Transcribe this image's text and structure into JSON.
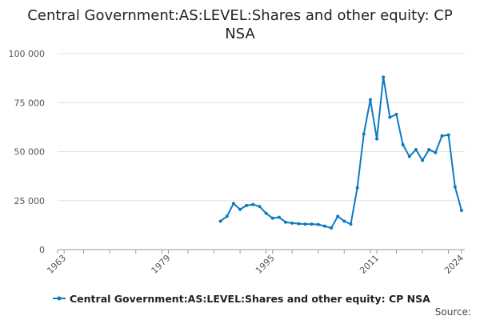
{
  "chart_data": {
    "type": "line",
    "title_lines": [
      "Central Government:AS:LEVEL:Shares and other equity: CP",
      "NSA"
    ],
    "xlabel": "",
    "ylabel": "",
    "xlim": [
      1962,
      2024.5
    ],
    "ylim": [
      0,
      100000
    ],
    "grid": true,
    "legend_position": "bottom",
    "x_ticks": [
      1963,
      1979,
      1995,
      2011,
      2024
    ],
    "x_tick_labels": [
      "1963",
      "1979",
      "1995",
      "2011",
      "2024"
    ],
    "y_ticks": [
      0,
      25000,
      50000,
      75000,
      100000
    ],
    "y_tick_labels": [
      "0",
      "25 000",
      "50 000",
      "75 000",
      "100 000"
    ],
    "series": [
      {
        "name": "Central Government:AS:LEVEL:Shares and other equity: CP NSA",
        "color": "#0d7abf",
        "x": [
          1987,
          1988,
          1989,
          1990,
          1991,
          1992,
          1993,
          1994,
          1995,
          1996,
          1997,
          1998,
          1999,
          2000,
          2001,
          2002,
          2003,
          2004,
          2005,
          2006,
          2007,
          2008,
          2009,
          2010,
          2011,
          2012,
          2013,
          2014,
          2015,
          2016,
          2017,
          2018,
          2019,
          2020,
          2021,
          2022,
          2023,
          2024
        ],
        "y": [
          14500,
          17000,
          23500,
          20500,
          22500,
          23000,
          22000,
          18500,
          16000,
          16500,
          14000,
          13500,
          13200,
          13000,
          13000,
          12800,
          12000,
          11000,
          17000,
          14500,
          13000,
          31500,
          59000,
          76500,
          56500,
          88000,
          67500,
          69000,
          53500,
          47500,
          51000,
          45500,
          51000,
          49500,
          58000,
          58500,
          32000,
          20000
        ]
      }
    ]
  },
  "legend": {
    "label": "Central Government:AS:LEVEL:Shares and other equity: CP NSA"
  },
  "footer": {
    "source_label": "Source:"
  }
}
